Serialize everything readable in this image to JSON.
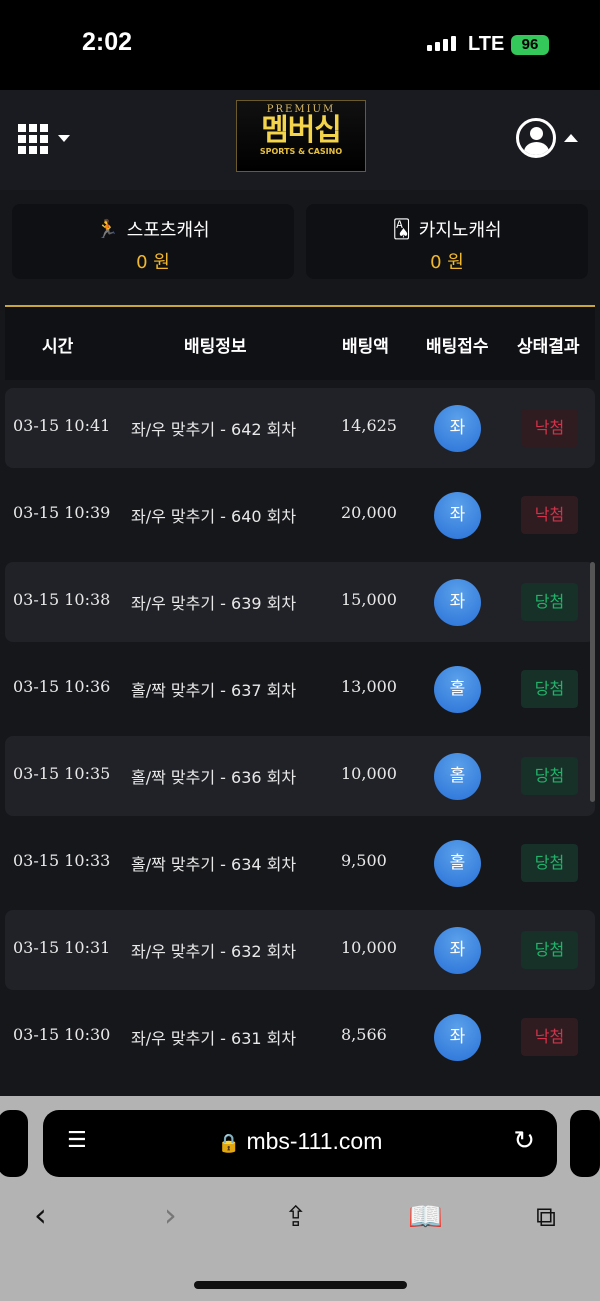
{
  "status_bar": {
    "time": "2:02",
    "network": "LTE",
    "battery": "96"
  },
  "header": {
    "logo": {
      "top": "PREMIUM",
      "main": "멤버십",
      "sub": "SPORTS & CASINO"
    }
  },
  "wallets": [
    {
      "label": "스포츠캐쉬",
      "value": "0 원",
      "icon": "running-man-icon"
    },
    {
      "label": "카지노캐쉬",
      "value": "0 원",
      "icon": "playing-cards-icon"
    }
  ],
  "table": {
    "headers": [
      "시간",
      "배팅정보",
      "배팅액",
      "배팅접수",
      "상태결과"
    ],
    "rows": [
      {
        "time": "03-15 10:41",
        "info": "좌/우 맞추기 - 642 회차",
        "amount": "14,625",
        "pick": "좌",
        "result": "낙첨"
      },
      {
        "time": "03-15 10:39",
        "info": "좌/우 맞추기 - 640 회차",
        "amount": "20,000",
        "pick": "좌",
        "result": "낙첨"
      },
      {
        "time": "03-15 10:38",
        "info": "좌/우 맞추기 - 639 회차",
        "amount": "15,000",
        "pick": "좌",
        "result": "당첨"
      },
      {
        "time": "03-15 10:36",
        "info": "홀/짝 맞추기 - 637 회차",
        "amount": "13,000",
        "pick": "홀",
        "result": "당첨"
      },
      {
        "time": "03-15 10:35",
        "info": "홀/짝 맞추기 - 636 회차",
        "amount": "10,000",
        "pick": "홀",
        "result": "당첨"
      },
      {
        "time": "03-15 10:33",
        "info": "홀/짝 맞추기 - 634 회차",
        "amount": "9,500",
        "pick": "홀",
        "result": "당첨"
      },
      {
        "time": "03-15 10:31",
        "info": "좌/우 맞추기 - 632 회차",
        "amount": "10,000",
        "pick": "좌",
        "result": "당첨"
      },
      {
        "time": "03-15 10:30",
        "info": "좌/우 맞추기 - 631 회차",
        "amount": "8,566",
        "pick": "좌",
        "result": "낙첨"
      }
    ]
  },
  "colors": {
    "accent": "#f1b82d",
    "win": "#22b36a",
    "lose": "#d2334a",
    "pick": "#3a85e0"
  },
  "browser": {
    "url": "mbs-111.com"
  }
}
